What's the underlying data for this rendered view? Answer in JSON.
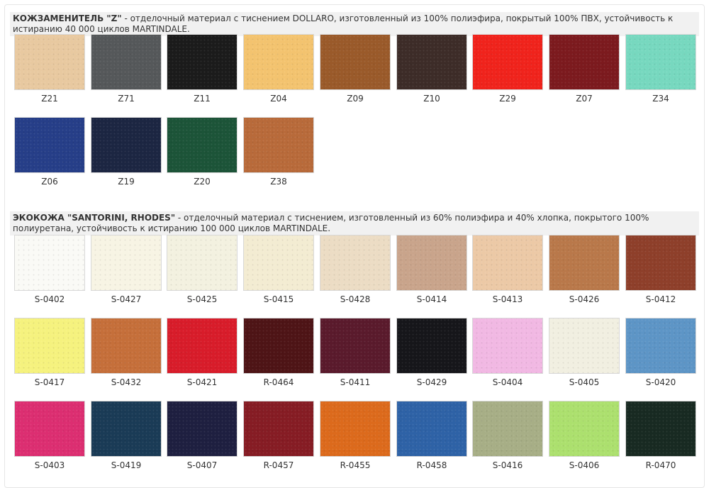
{
  "sections": [
    {
      "title": "КОЖЗАМЕНИТЕЛЬ \"Z\"",
      "desc_line1": " - отделочный материал с тиснением DOLLARO, изготовленный из 100% полиэфира, покрытый 100% ПВХ, устойчивость к",
      "desc_line2": "истиранию 40 000 циклов MARTINDALE.",
      "swatches": [
        {
          "code": "Z21",
          "color": "#e8c9a0"
        },
        {
          "code": "Z71",
          "color": "#55585a"
        },
        {
          "code": "Z11",
          "color": "#1b1b1b"
        },
        {
          "code": "Z04",
          "color": "#f3c36f"
        },
        {
          "code": "Z09",
          "color": "#9a5a2a"
        },
        {
          "code": "Z10",
          "color": "#3d2c28"
        },
        {
          "code": "Z29",
          "color": "#f0231c"
        },
        {
          "code": "Z07",
          "color": "#7c1a1e"
        },
        {
          "code": "Z34",
          "color": "#77d8bf"
        },
        {
          "code": "Z06",
          "color": "#263e88"
        },
        {
          "code": "Z19",
          "color": "#1c2642"
        },
        {
          "code": "Z20",
          "color": "#1c5438"
        },
        {
          "code": "Z38",
          "color": "#b86a3a"
        }
      ]
    },
    {
      "title": "ЭКОКОЖА \"SANTORINI, RHODES\"",
      "desc_line1": " - отделочный материал с тиснением, изготовленный из 60% полиэфира и 40% хлопка, покрытого 100%",
      "desc_line2": "полиуретана, устойчивость к истиранию 100 000 циклов MARTINDALE.",
      "swatches": [
        {
          "code": "S-0402",
          "color": "#fafaf6"
        },
        {
          "code": "S-0427",
          "color": "#f7f4e4"
        },
        {
          "code": "S-0425",
          "color": "#f3f1e0"
        },
        {
          "code": "S-0415",
          "color": "#f3ecd2"
        },
        {
          "code": "S-0428",
          "color": "#ecdcc4"
        },
        {
          "code": "S-0414",
          "color": "#c9a48b"
        },
        {
          "code": "S-0413",
          "color": "#ecc9a6"
        },
        {
          "code": "S-0426",
          "color": "#b9784a"
        },
        {
          "code": "S-0412",
          "color": "#8e3f2a"
        },
        {
          "code": "S-0417",
          "color": "#f5f27e"
        },
        {
          "code": "S-0432",
          "color": "#c56f3a"
        },
        {
          "code": "S-0421",
          "color": "#d81c2a"
        },
        {
          "code": "R-0464",
          "color": "#4e1416"
        },
        {
          "code": "S-0411",
          "color": "#5a1a2c"
        },
        {
          "code": "S-0429",
          "color": "#16161a"
        },
        {
          "code": "S-0404",
          "color": "#f1b8e3"
        },
        {
          "code": "S-0405",
          "color": "#f1efe1"
        },
        {
          "code": "S-0420",
          "color": "#5d95c6"
        },
        {
          "code": "S-0403",
          "color": "#dc2e71"
        },
        {
          "code": "S-0419",
          "color": "#1a3b56"
        },
        {
          "code": "S-0407",
          "color": "#1e1f40"
        },
        {
          "code": "R-0457",
          "color": "#861c24"
        },
        {
          "code": "R-0455",
          "color": "#dc6a1c"
        },
        {
          "code": "R-0458",
          "color": "#2e62a6"
        },
        {
          "code": "S-0416",
          "color": "#a7ae86"
        },
        {
          "code": "S-0406",
          "color": "#ace06e"
        },
        {
          "code": "R-0470",
          "color": "#182a22"
        }
      ]
    }
  ]
}
